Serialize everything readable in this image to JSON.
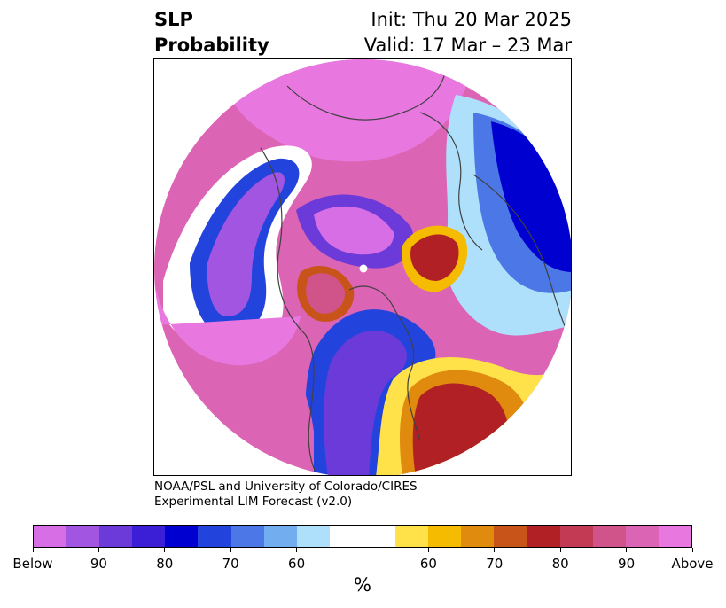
{
  "header": {
    "variable_line1": "SLP",
    "variable_line2": "Probability",
    "init_label": "Init: Thu 20 Mar 2025",
    "valid_label": "Valid: 17 Mar – 23 Mar"
  },
  "credit": {
    "line1": "NOAA/PSL and University of Colorado/CIRES",
    "line2": "Experimental LIM Forecast (v2.0)"
  },
  "colorbar": {
    "unit": "%",
    "below_colors": [
      "#d86ee6",
      "#a155e0",
      "#6c3ad8",
      "#3a1fd6",
      "#0000d0",
      "#2244dd",
      "#4b78e6",
      "#72adf0",
      "#aee0fb"
    ],
    "neutral_color": "#ffffff",
    "above_colors": [
      "#ffe14a",
      "#f5bb00",
      "#e08a0e",
      "#c8541a",
      "#b02024",
      "#c23a54",
      "#d0548a",
      "#dc64b4",
      "#e878e0"
    ],
    "tick_labels": [
      "Below",
      "90",
      "80",
      "70",
      "60",
      "60",
      "70",
      "80",
      "90",
      "Above"
    ]
  },
  "map": {
    "projection": "north-polar-stereographic",
    "region": "Northern Hemisphere"
  }
}
